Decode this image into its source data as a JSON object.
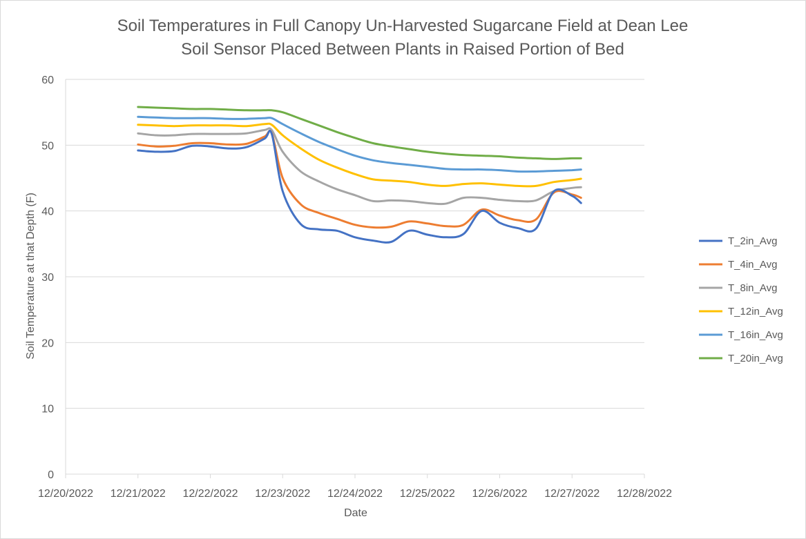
{
  "chart_data": {
    "type": "line",
    "title": "Soil Temperatures  in Full Canopy Un-Harvested Sugarcane Field at Dean Lee",
    "subtitle": "Soil Sensor Placed Between Plants in Raised Portion of Bed",
    "xlabel": "Date",
    "ylabel": "Soil Temperature at that Depth (F)",
    "x_ticks": [
      "12/20/2022",
      "12/21/2022",
      "12/22/2022",
      "12/23/2022",
      "12/24/2022",
      "12/25/2022",
      "12/26/2022",
      "12/27/2022",
      "12/28/2022"
    ],
    "y_ticks": [
      "0",
      "10",
      "20",
      "30",
      "40",
      "50",
      "60"
    ],
    "xlim": [
      "12/20/2022",
      "12/28/2022"
    ],
    "ylim": [
      0,
      60
    ],
    "grid": "horizontal",
    "legend_position": "right",
    "x": [
      "12/21/2022 00:00",
      "12/21/2022 06:00",
      "12/21/2022 12:00",
      "12/21/2022 18:00",
      "12/22/2022 00:00",
      "12/22/2022 06:00",
      "12/22/2022 12:00",
      "12/22/2022 18:00",
      "12/22/2022 20:24",
      "12/23/2022 00:00",
      "12/23/2022 06:00",
      "12/23/2022 12:00",
      "12/23/2022 18:00",
      "12/24/2022 00:00",
      "12/24/2022 06:00",
      "12/24/2022 12:00",
      "12/24/2022 18:00",
      "12/25/2022 00:00",
      "12/25/2022 06:00",
      "12/25/2022 12:00",
      "12/25/2022 18:00",
      "12/26/2022 00:00",
      "12/26/2022 06:00",
      "12/26/2022 12:00",
      "12/26/2022 18:00",
      "12/27/2022 00:00",
      "12/27/2022 03:00"
    ],
    "series": [
      {
        "name": "T_2in_Avg",
        "color": "#4472c4",
        "values": [
          49.2,
          49.0,
          49.1,
          49.9,
          49.8,
          49.5,
          49.7,
          51.0,
          51.7,
          43.0,
          38.0,
          37.2,
          37.0,
          36.0,
          35.5,
          35.3,
          37.0,
          36.4,
          36.0,
          36.5,
          40.0,
          38.2,
          37.4,
          37.3,
          43.0,
          42.3,
          41.2
        ]
      },
      {
        "name": "T_4in_Avg",
        "color": "#ed7d31",
        "values": [
          50.1,
          49.8,
          49.9,
          50.3,
          50.3,
          50.1,
          50.2,
          51.3,
          51.8,
          45.0,
          41.0,
          39.7,
          38.8,
          37.9,
          37.5,
          37.6,
          38.4,
          38.1,
          37.7,
          37.9,
          40.2,
          39.3,
          38.6,
          38.7,
          42.8,
          42.5,
          42.0
        ]
      },
      {
        "name": "T_8in_Avg",
        "color": "#a5a5a5",
        "values": [
          51.8,
          51.5,
          51.5,
          51.7,
          51.7,
          51.7,
          51.8,
          52.3,
          52.3,
          49.0,
          46.0,
          44.5,
          43.3,
          42.4,
          41.5,
          41.6,
          41.5,
          41.2,
          41.1,
          42.0,
          42.0,
          41.7,
          41.5,
          41.6,
          43.0,
          43.5,
          43.6
        ]
      },
      {
        "name": "T_12in_Avg",
        "color": "#ffc000",
        "values": [
          53.1,
          53.0,
          52.9,
          53.0,
          53.0,
          53.0,
          52.9,
          53.2,
          53.1,
          51.5,
          49.5,
          47.8,
          46.6,
          45.6,
          44.8,
          44.6,
          44.4,
          44.0,
          43.8,
          44.1,
          44.2,
          44.0,
          43.8,
          43.8,
          44.4,
          44.7,
          44.9
        ]
      },
      {
        "name": "T_16in_Avg",
        "color": "#5b9bd5",
        "values": [
          54.3,
          54.2,
          54.1,
          54.1,
          54.1,
          54.0,
          54.0,
          54.1,
          54.1,
          53.2,
          51.8,
          50.5,
          49.4,
          48.4,
          47.7,
          47.3,
          47.0,
          46.7,
          46.4,
          46.3,
          46.3,
          46.2,
          46.0,
          46.0,
          46.1,
          46.2,
          46.3
        ]
      },
      {
        "name": "T_20in_Avg",
        "color": "#70ad47",
        "values": [
          55.8,
          55.7,
          55.6,
          55.5,
          55.5,
          55.4,
          55.3,
          55.3,
          55.3,
          55.0,
          54.0,
          53.0,
          52.0,
          51.1,
          50.3,
          49.8,
          49.4,
          49.0,
          48.7,
          48.5,
          48.4,
          48.3,
          48.1,
          48.0,
          47.9,
          48.0,
          48.0
        ]
      }
    ]
  }
}
